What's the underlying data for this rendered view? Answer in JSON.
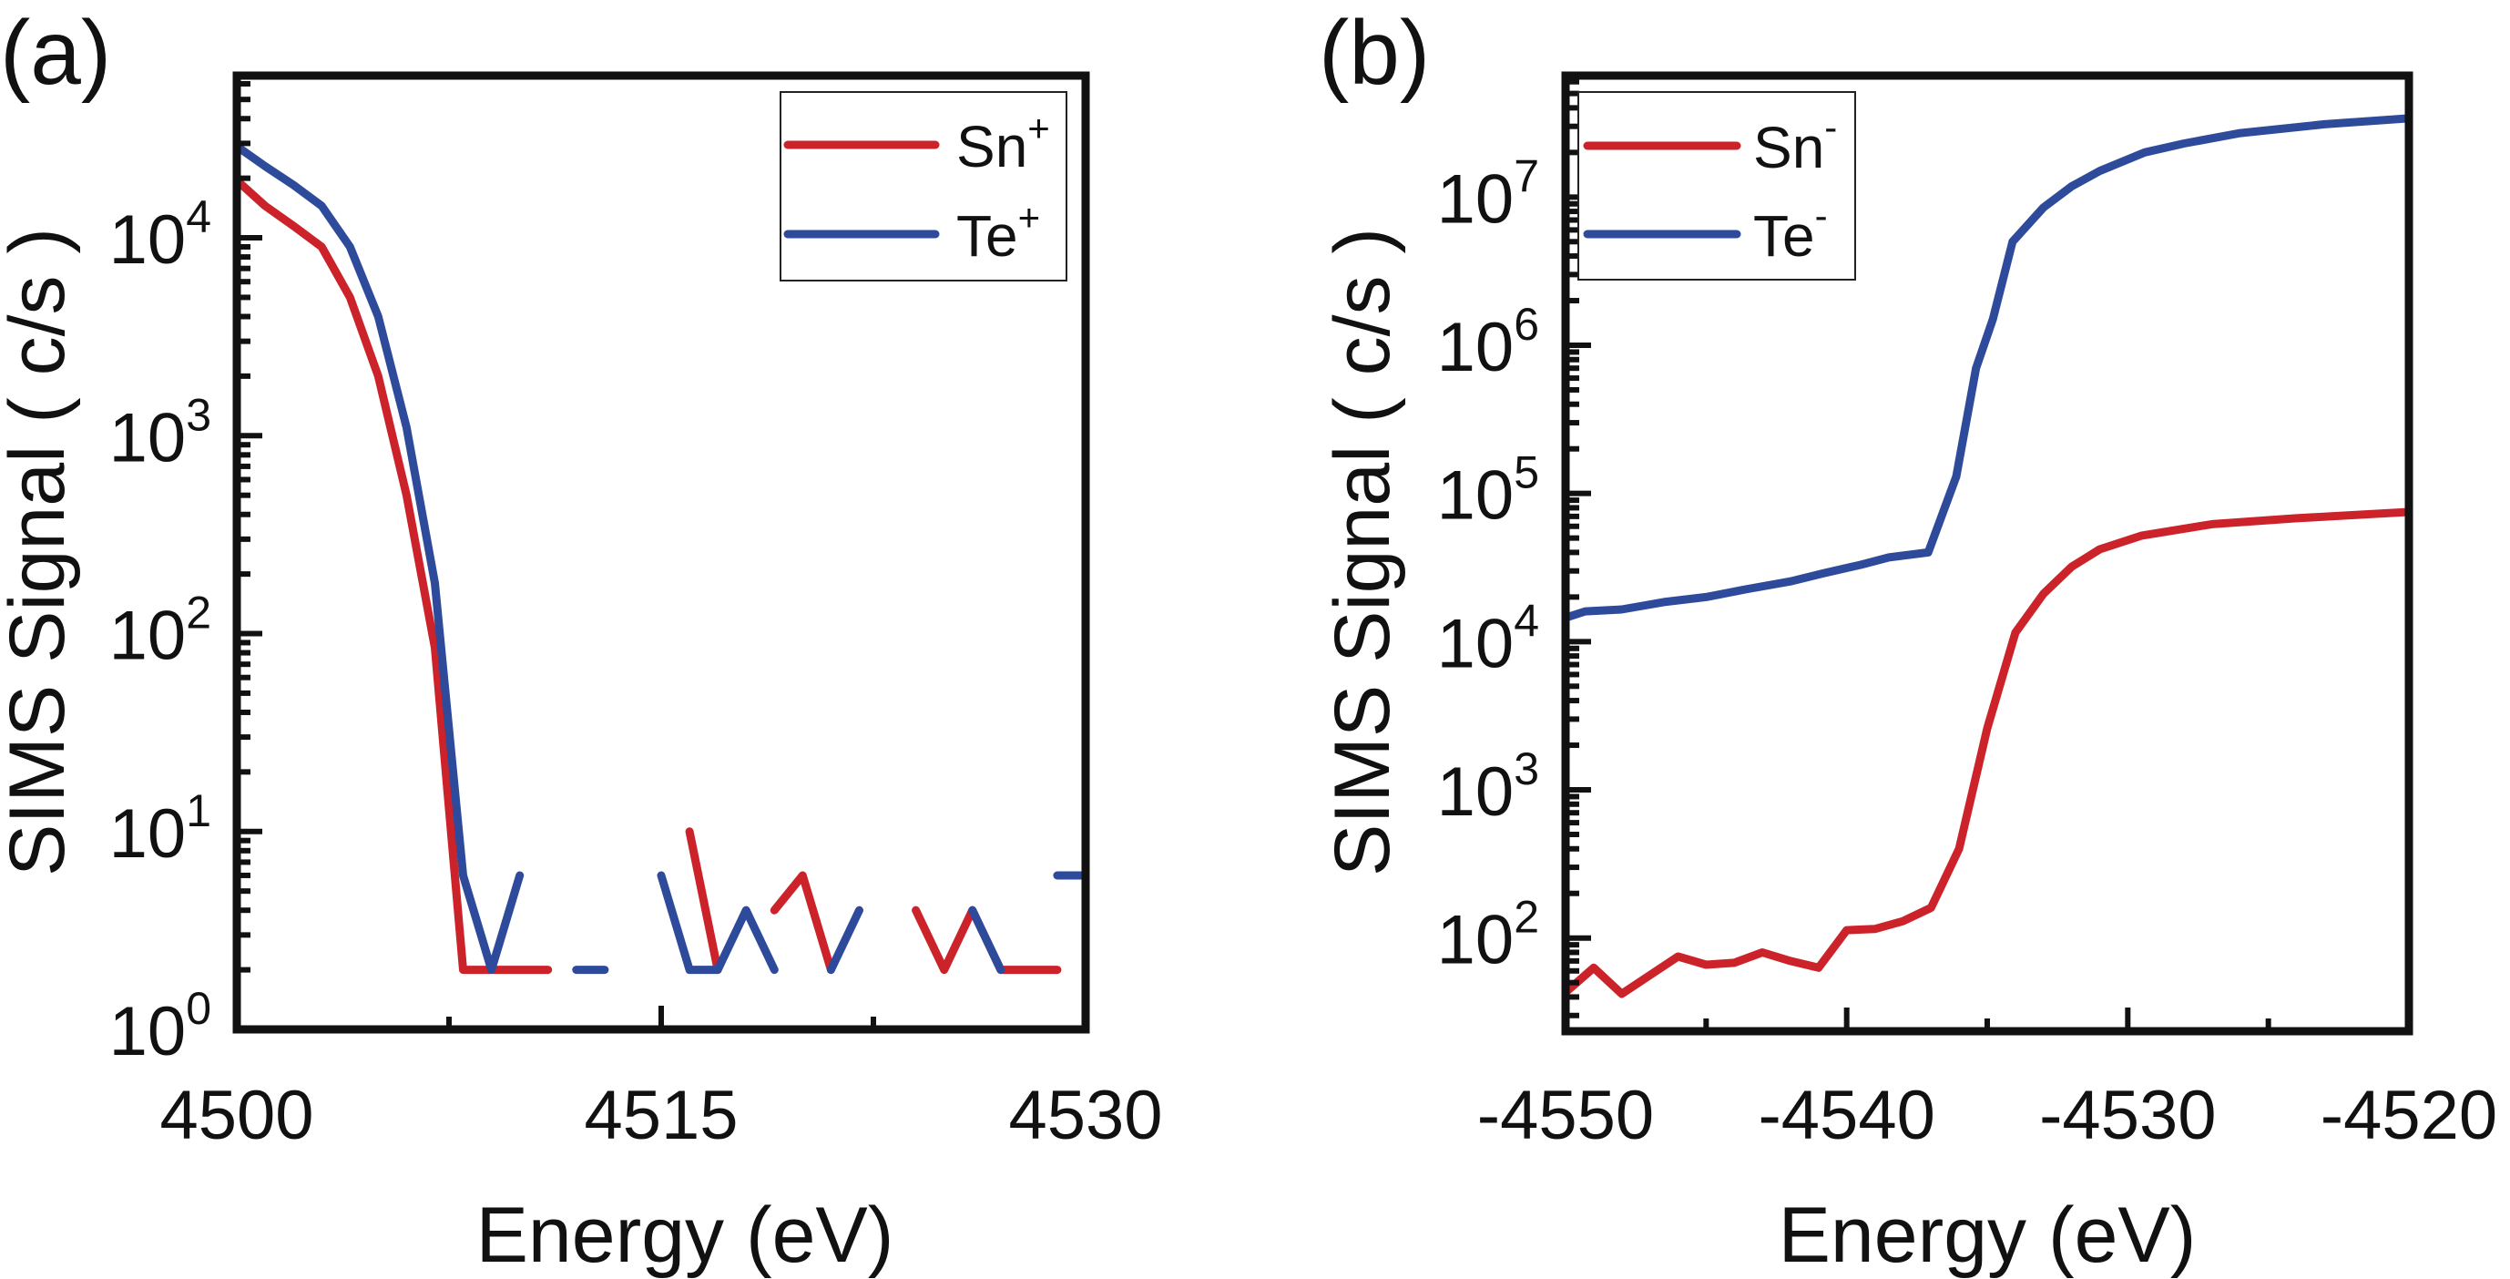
{
  "chart_data": [
    {
      "panel_label": "(a)",
      "type": "line",
      "title": "",
      "xlabel": "Energy (eV)",
      "ylabel": "SIMS Signal ( c/s )",
      "xlim": [
        4500,
        4530
      ],
      "ylim": [
        1,
        66000
      ],
      "yscale": "log",
      "xticks": [
        4500,
        4515,
        4530
      ],
      "xtick_labels": [
        "4500",
        "4515",
        "4530"
      ],
      "xminor_ticks": [
        4507.5,
        4522.5
      ],
      "yticks": [
        1,
        10,
        100,
        1000,
        10000
      ],
      "ytick_labels": [
        {
          "base": "10",
          "exp": "0"
        },
        {
          "base": "10",
          "exp": "1"
        },
        {
          "base": "10",
          "exp": "2"
        },
        {
          "base": "10",
          "exp": "3"
        },
        {
          "base": "10",
          "exp": "4"
        }
      ],
      "legend": {
        "position": "top-right",
        "entries": [
          {
            "name": "Sn",
            "charge": "+",
            "color": "#CC2229"
          },
          {
            "name": "Te",
            "charge": "+",
            "color": "#2E4A9B"
          }
        ]
      },
      "series": [
        {
          "name": "Sn+",
          "color": "#CC2229",
          "x": [
            4500,
            4501,
            4502,
            4503,
            4504,
            4505,
            4506,
            4507,
            4508,
            4509,
            4510,
            4511,
            4512,
            4513,
            4514,
            4515,
            4516,
            4517,
            4518,
            4519,
            4520,
            4521,
            4522,
            4523,
            4524,
            4525,
            4526,
            4527,
            4528,
            4529
          ],
          "y": [
            19500,
            14500,
            11500,
            9000,
            5000,
            2000,
            500,
            85,
            2,
            2,
            2,
            2,
            null,
            null,
            null,
            null,
            10,
            2,
            null,
            4,
            6,
            2,
            null,
            null,
            4,
            2,
            4,
            2,
            2,
            2
          ]
        },
        {
          "name": "Te+",
          "color": "#2E4A9B",
          "x": [
            4500,
            4501,
            4502,
            4503,
            4504,
            4505,
            4506,
            4507,
            4508,
            4509,
            4510,
            4511,
            4512,
            4513,
            4514,
            4515,
            4516,
            4517,
            4518,
            4519,
            4520,
            4521,
            4522,
            4523,
            4524,
            4525,
            4526,
            4527,
            4528,
            4529,
            4530
          ],
          "y": [
            29000,
            23000,
            18500,
            14500,
            9000,
            4000,
            1100,
            180,
            6,
            2,
            6,
            null,
            2,
            2,
            null,
            6,
            2,
            2,
            4,
            2,
            null,
            2,
            4,
            null,
            null,
            null,
            4,
            2,
            null,
            6,
            6
          ]
        }
      ]
    },
    {
      "panel_label": "(b)",
      "type": "line",
      "title": "",
      "xlabel": "Energy (eV)",
      "ylabel": "SIMS Signal ( c/s )",
      "xlim": [
        -4550,
        -4520
      ],
      "ylim": [
        23.5,
        66000000
      ],
      "yscale": "log",
      "xticks": [
        -4550,
        -4540,
        -4530,
        -4520
      ],
      "xtick_labels": [
        "-4550",
        "-4540",
        "-4530",
        "-4520"
      ],
      "xminor_ticks": [
        -4545,
        -4535,
        -4525
      ],
      "yticks": [
        100,
        1000,
        10000,
        100000,
        1000000,
        10000000
      ],
      "ytick_labels": [
        {
          "base": "10",
          "exp": "2"
        },
        {
          "base": "10",
          "exp": "3"
        },
        {
          "base": "10",
          "exp": "4"
        },
        {
          "base": "10",
          "exp": "5"
        },
        {
          "base": "10",
          "exp": "6"
        },
        {
          "base": "10",
          "exp": "7"
        }
      ],
      "legend": {
        "position": "top-left",
        "entries": [
          {
            "name": "Sn",
            "charge": "-",
            "color": "#CC2229"
          },
          {
            "name": "Te",
            "charge": "-",
            "color": "#2E4A9B"
          }
        ]
      },
      "series": [
        {
          "name": "Sn-",
          "color": "#CC2229",
          "x": [
            -4550,
            -4549,
            -4548,
            -4546,
            -4545,
            -4544,
            -4543,
            -4542,
            -4541,
            -4540,
            -4539,
            -4538,
            -4537,
            -4536,
            -4535,
            -4534,
            -4533,
            -4532,
            -4531,
            -4529.5,
            -4527,
            -4524,
            -4520
          ],
          "y": [
            43,
            63,
            42,
            75,
            66,
            68,
            80,
            70,
            63,
            113,
            115,
            130,
            160,
            400,
            2600,
            11500,
            21000,
            32000,
            42000,
            52000,
            62000,
            68000,
            75000
          ]
        },
        {
          "name": "Te-",
          "color": "#2E4A9B",
          "x": [
            -4550,
            -4549.3,
            -4548,
            -4546.5,
            -4545,
            -4543.6,
            -4542,
            -4540.8,
            -4539.5,
            -4538.5,
            -4537.1,
            -4536.1,
            -4535.4,
            -4534.8,
            -4534.1,
            -4533,
            -4532,
            -4531,
            -4529.4,
            -4528,
            -4526,
            -4523,
            -4520
          ],
          "y": [
            14500,
            16000,
            16500,
            18500,
            20000,
            22500,
            25500,
            29000,
            33000,
            37000,
            40000,
            130000,
            700000,
            1500000,
            5000000,
            8500000,
            11800000,
            15000000,
            20000000,
            23000000,
            27000000,
            31000000,
            34000000
          ]
        }
      ]
    }
  ]
}
